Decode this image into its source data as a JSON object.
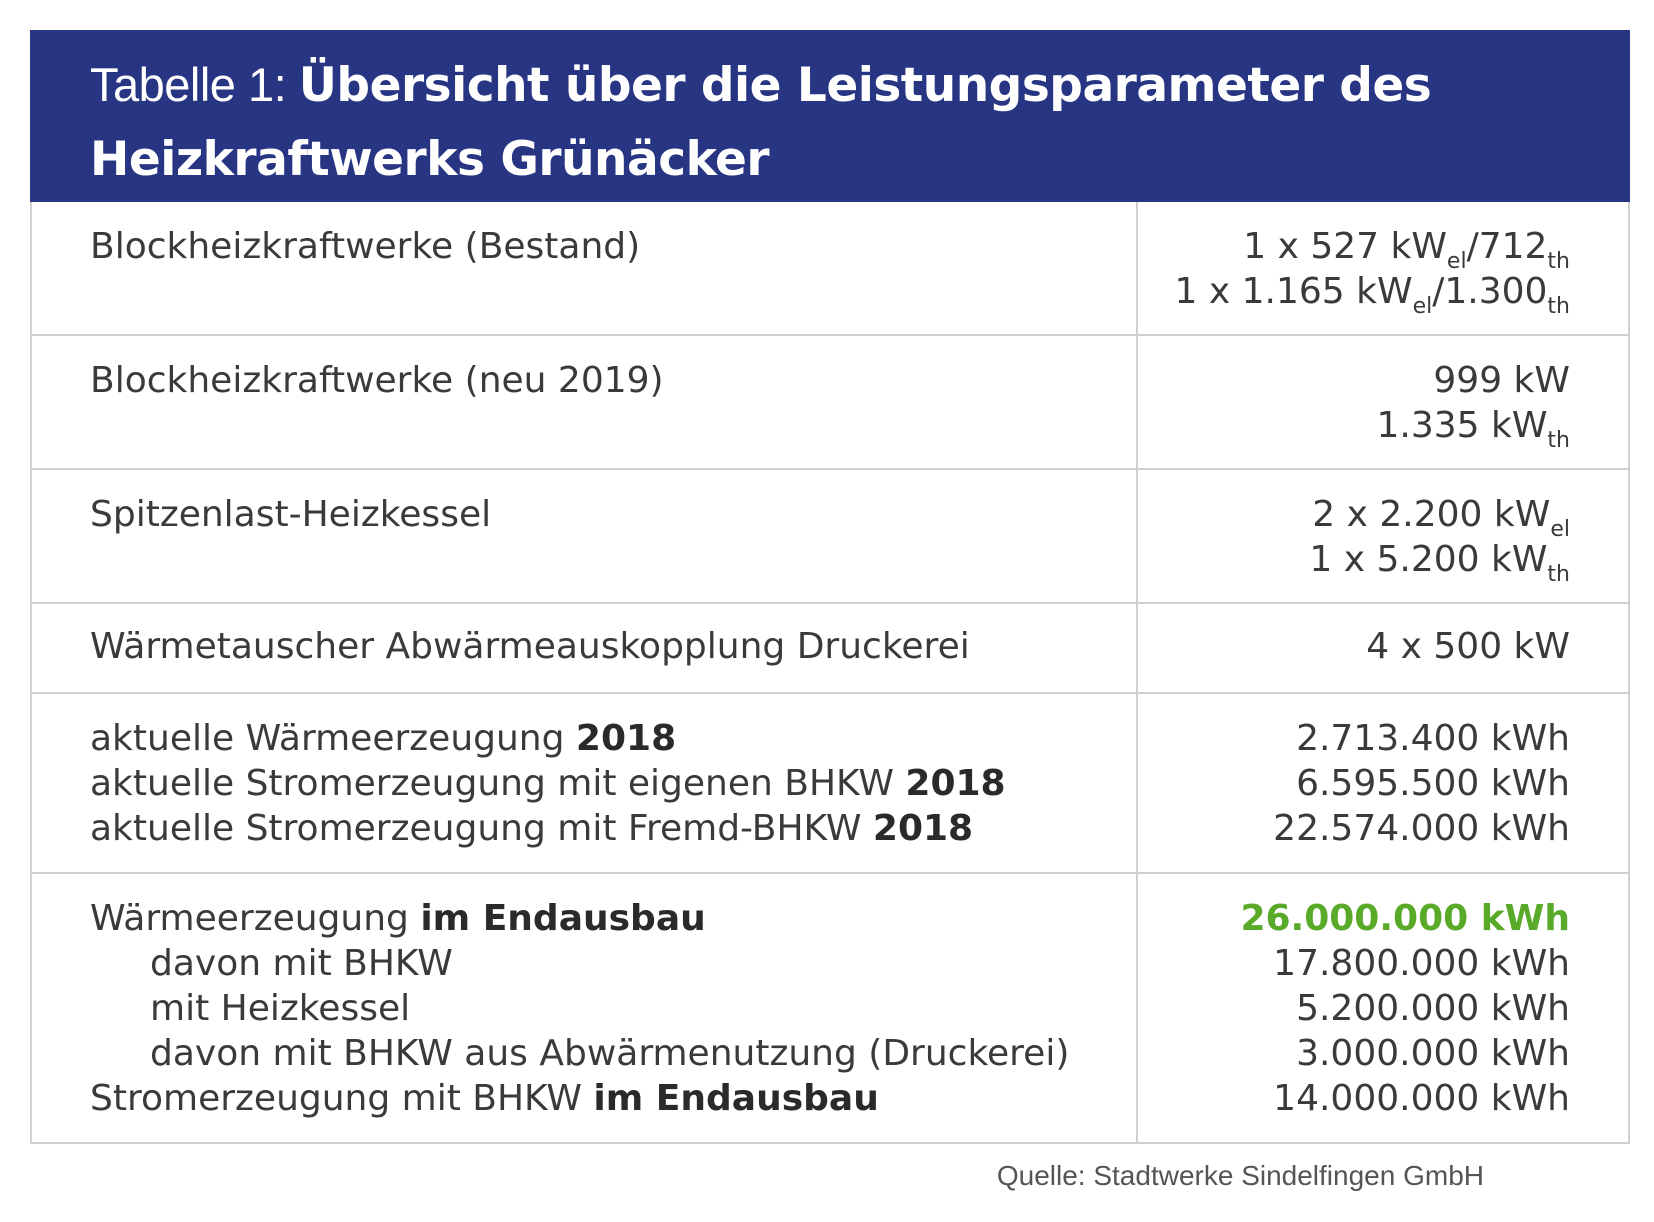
{
  "header": {
    "prefix": "Tabelle 1: ",
    "title_line1": "Übersicht über die Leistungsparameter des",
    "title_line2": "Heizkraftwerks Grünäcker"
  },
  "rows": [
    {
      "label": "Blockheizkraftwerke (Bestand)",
      "v1": {
        "a": "1 x 527 kW",
        "a_sub": "el",
        "b": "/712",
        "b_sub": "th"
      },
      "v2": {
        "a": "1 x 1.165 kW",
        "a_sub": "el",
        "b": "/1.300",
        "b_sub": "th"
      }
    },
    {
      "label": "Blockheizkraftwerke (neu 2019)",
      "v1": {
        "a": "999 kW"
      },
      "v2": {
        "a": "1.335 kW",
        "a_sub": "th"
      }
    },
    {
      "label": "Spitzenlast-Heizkessel",
      "v1": {
        "a": "2 x 2.200 kW",
        "a_sub": "el"
      },
      "v2": {
        "a": "1 x 5.200 kW",
        "a_sub": "th"
      }
    },
    {
      "label": "Wärmetauscher Abwärmeauskopplung Druckerei",
      "v1": {
        "a": "4 x 500 kW"
      }
    },
    {
      "lines": [
        {
          "text": "aktuelle Wärmeerzeugung ",
          "bold": "2018"
        },
        {
          "text": "aktuelle Stromerzeugung mit eigenen BHKW ",
          "bold": "2018"
        },
        {
          "text": "aktuelle Stromerzeugung mit Fremd-BHKW ",
          "bold": "2018"
        }
      ],
      "values": [
        "2.713.400 kWh",
        "6.595.500 kWh",
        "22.574.000 kWh"
      ]
    },
    {
      "lines": [
        {
          "text": "Wärmeerzeugung ",
          "bold": "im Endausbau"
        },
        {
          "text": "davon mit BHKW"
        },
        {
          "text": "mit Heizkessel"
        },
        {
          "text": "davon mit BHKW aus Abwärmenutzung (Druckerei)"
        },
        {
          "text": "Stromerzeugung mit BHKW ",
          "bold": "im Endausbau"
        }
      ],
      "values": [
        "26.000.000 kWh",
        "17.800.000 kWh",
        "5.200.000 kWh",
        "3.000.000 kWh",
        "14.000.000 kWh"
      ]
    }
  ],
  "source": "Quelle: Stadtwerke Sindelfingen GmbH",
  "colors": {
    "header_bg": "#283583",
    "highlight_green": "#5aaa2a",
    "border": "#cfcfcf"
  }
}
